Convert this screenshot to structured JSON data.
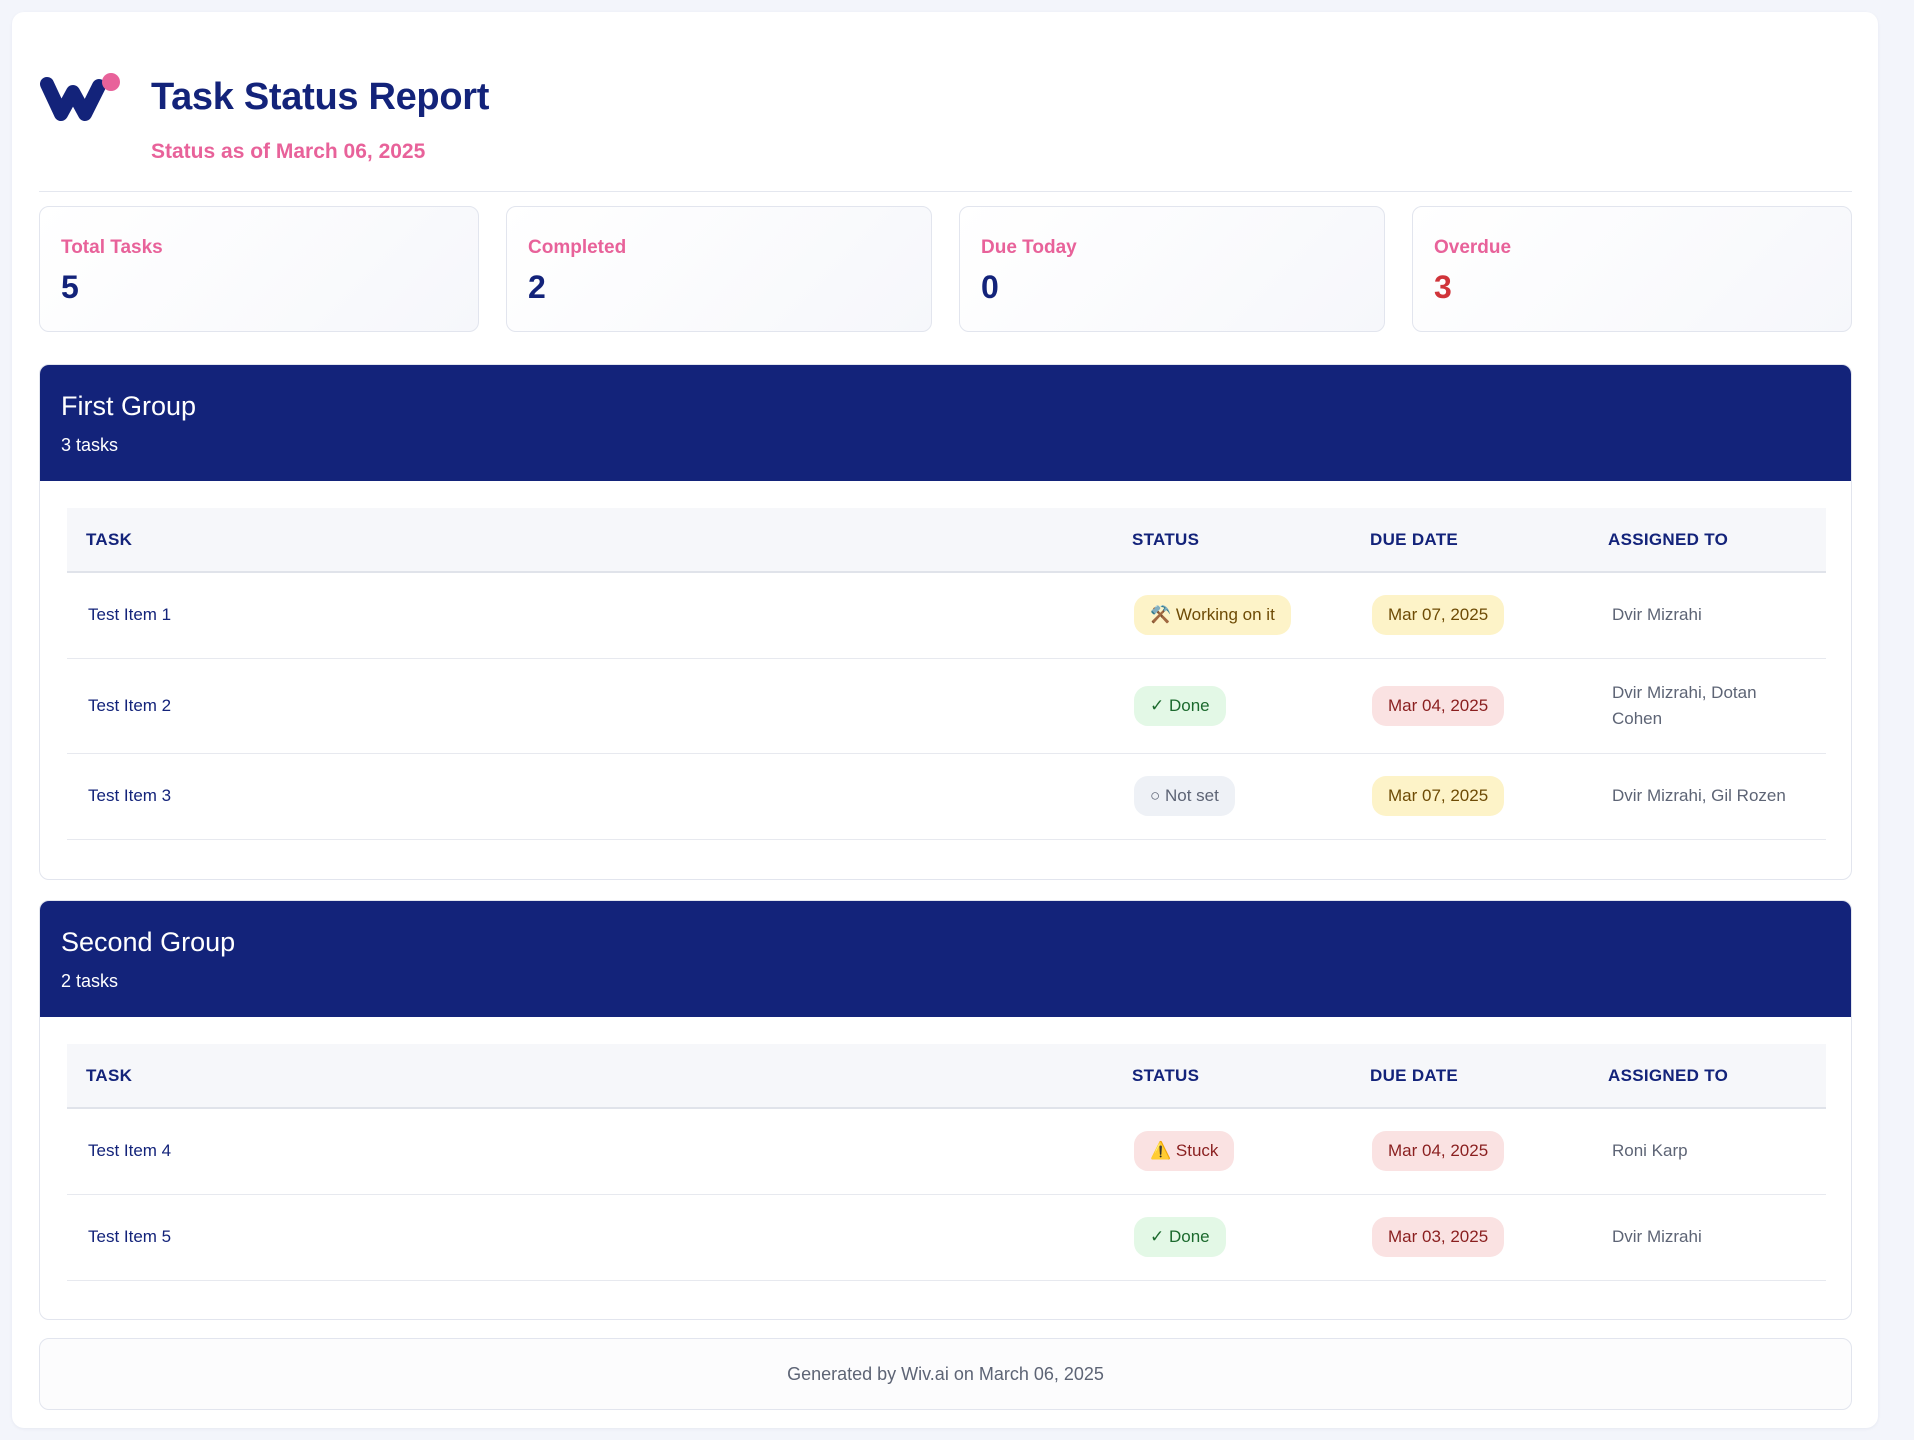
{
  "header": {
    "title": "Task Status Report",
    "subtitle": "Status as of March 06, 2025",
    "colors": {
      "primary": "#13237a",
      "accent": "#e8629a"
    }
  },
  "stats": [
    {
      "label": "Total Tasks",
      "value": "5"
    },
    {
      "label": "Completed",
      "value": "2"
    },
    {
      "label": "Due Today",
      "value": "0"
    },
    {
      "label": "Overdue",
      "value": "3",
      "color": "#d0343a"
    }
  ],
  "table_headers": {
    "task": "TASK",
    "status": "STATUS",
    "due_date": "DUE DATE",
    "assigned_to": "ASSIGNED TO"
  },
  "groups": [
    {
      "title": "First Group",
      "count": "3 tasks",
      "rows": [
        {
          "task": "Test Item 1",
          "status": "⚒️ Working on it",
          "due": "Mar 07, 2025",
          "assigned": "Dvir Mizrahi"
        },
        {
          "task": "Test Item 2",
          "status": "✓ Done",
          "due": "Mar 04, 2025",
          "assigned": "Dvir Mizrahi, Dotan Cohen"
        },
        {
          "task": "Test Item 3",
          "status": "○ Not set",
          "due": "Mar 07, 2025",
          "assigned": "Dvir Mizrahi, Gil Rozen"
        }
      ]
    },
    {
      "title": "Second Group",
      "count": "2 tasks",
      "rows": [
        {
          "task": "Test Item 4",
          "status": "⚠️ Stuck",
          "due": "Mar 04, 2025",
          "assigned": "Roni Karp"
        },
        {
          "task": "Test Item 5",
          "status": "✓ Done",
          "due": "Mar 03, 2025",
          "assigned": "Dvir Mizrahi"
        }
      ]
    }
  ],
  "footer": {
    "text": "Generated by Wiv.ai on March 06, 2025"
  }
}
